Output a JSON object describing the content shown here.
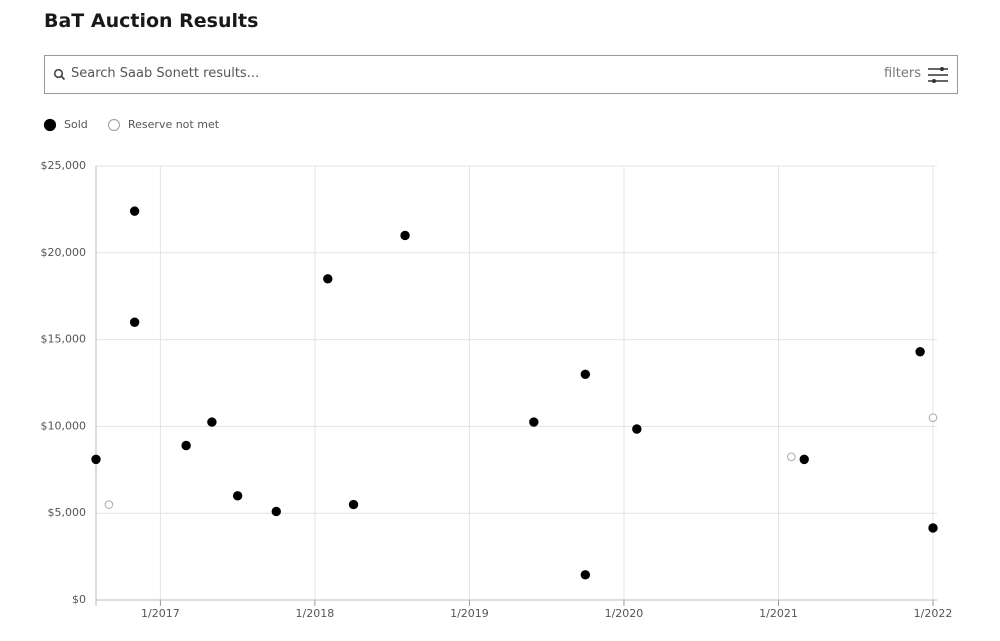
{
  "header": {
    "title": "BaT Auction Results"
  },
  "search": {
    "placeholder": "Search Saab Sonett results...",
    "filters_label": "filters"
  },
  "chart_data": {
    "type": "scatter",
    "series": [
      {
        "name": "Sold",
        "color": "#000000",
        "filled": true,
        "x": [
          "2016-08",
          "2016-11",
          "2016-11",
          "2017-03",
          "2017-05",
          "2017-07",
          "2017-10",
          "2018-02",
          "2018-04",
          "2018-08",
          "2019-06",
          "2019-10",
          "2019-10",
          "2020-02",
          "2021-03",
          "2021-12",
          "2022-01"
        ],
        "values": [
          8100,
          22400,
          16000,
          8900,
          10250,
          6000,
          5100,
          18500,
          5500,
          21000,
          10250,
          13000,
          1450,
          9850,
          8100,
          14300,
          4150
        ]
      },
      {
        "name": "Reserve not met",
        "color": "#aaaaaa",
        "filled": false,
        "x": [
          "2016-09",
          "2021-02",
          "2022-01"
        ],
        "values": [
          5500,
          8250,
          10500
        ]
      }
    ],
    "xlim": [
      "2016-08",
      "2022-01"
    ],
    "xticks": [
      {
        "value": "2017-01",
        "label": "1/2017"
      },
      {
        "value": "2018-01",
        "label": "1/2018"
      },
      {
        "value": "2019-01",
        "label": "1/2019"
      },
      {
        "value": "2020-01",
        "label": "1/2020"
      },
      {
        "value": "2021-01",
        "label": "1/2021"
      },
      {
        "value": "2022-01",
        "label": "1/2022"
      }
    ],
    "ylim": [
      0,
      25000
    ],
    "yticks": [
      {
        "value": 0,
        "label": "$0"
      },
      {
        "value": 5000,
        "label": "$5,000"
      },
      {
        "value": 10000,
        "label": "$10,000"
      },
      {
        "value": 15000,
        "label": "$15,000"
      },
      {
        "value": 20000,
        "label": "$20,000"
      },
      {
        "value": 25000,
        "label": "$25,000"
      }
    ],
    "grid": true
  }
}
